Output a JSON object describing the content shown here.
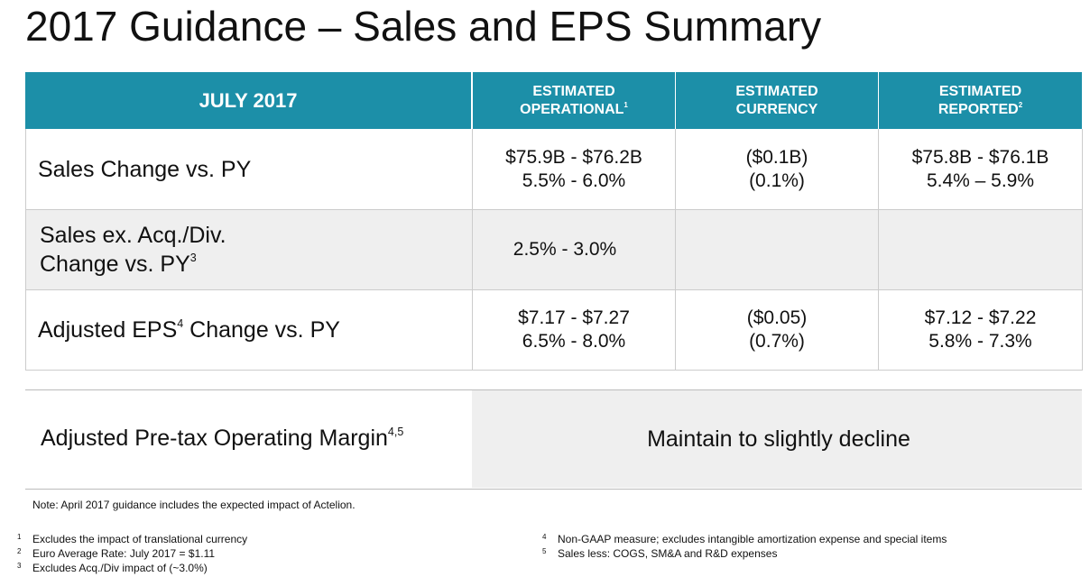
{
  "title": "2017 Guidance – Sales and EPS Summary",
  "table": {
    "header": [
      {
        "lines": [
          "JULY 2017"
        ]
      },
      {
        "lines": [
          "ESTIMATED",
          "OPERATIONAL"
        ],
        "sup": "1"
      },
      {
        "lines": [
          "ESTIMATED",
          "CURRENCY"
        ]
      },
      {
        "lines": [
          "ESTIMATED",
          "REPORTED"
        ],
        "sup": "2"
      }
    ],
    "rows": [
      {
        "label": [
          "Sales Change vs. PY"
        ],
        "cells": [
          [
            "$75.9B - $76.2B",
            "5.5% - 6.0%"
          ],
          [
            "($0.1B)",
            "(0.1%)"
          ],
          [
            "$75.8B - $76.1B",
            "5.4% – 5.9%"
          ]
        ]
      },
      {
        "label": [
          "Sales ex. Acq./Div.",
          "Change vs. PY"
        ],
        "label_sup": "3",
        "cells": [
          [
            "2.5% - 3.0%"
          ]
        ]
      },
      {
        "label": [
          "Adjusted EPS",
          " Change vs. PY"
        ],
        "label_sup": "4",
        "cells": [
          [
            "$7.17 - $7.27",
            "6.5% - 8.0%"
          ],
          [
            "($0.05)",
            "(0.7%)"
          ],
          [
            "$7.12 - $7.22",
            "5.8% - 7.3%"
          ]
        ]
      }
    ]
  },
  "margin": {
    "label": "Adjusted Pre-tax Operating Margin",
    "sup": "4,5",
    "value": "Maintain to slightly decline"
  },
  "note": "Note: April 2017 guidance includes the expected impact of Actelion.",
  "footnotes": [
    {
      "num": "1",
      "text": "Excludes the impact of translational currency"
    },
    {
      "num": "2",
      "text": "Euro Average Rate: July 2017 = $1.11"
    },
    {
      "num": "3",
      "text": "Excludes Acq./Div impact of (~3.0%)"
    },
    {
      "num": "4",
      "text": "Non-GAAP measure; excludes intangible amortization expense and special items"
    },
    {
      "num": "5",
      "text": "Sales less: COGS, SM&A and R&D expenses"
    }
  ]
}
